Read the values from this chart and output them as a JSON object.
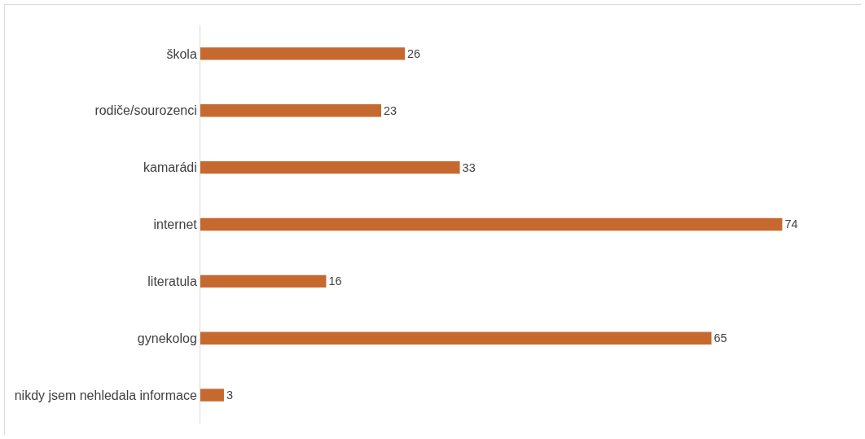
{
  "chart_data": {
    "type": "bar",
    "orientation": "horizontal",
    "categories": [
      "škola",
      "rodiče/sourozenci",
      "kamarádi",
      "internet",
      "literatula",
      "gynekolog",
      "nikdy jsem nehledala informace"
    ],
    "values": [
      26,
      23,
      33,
      74,
      16,
      65,
      3
    ],
    "color": "#c5692e",
    "data_labels": true,
    "grid": false,
    "legend": false
  }
}
